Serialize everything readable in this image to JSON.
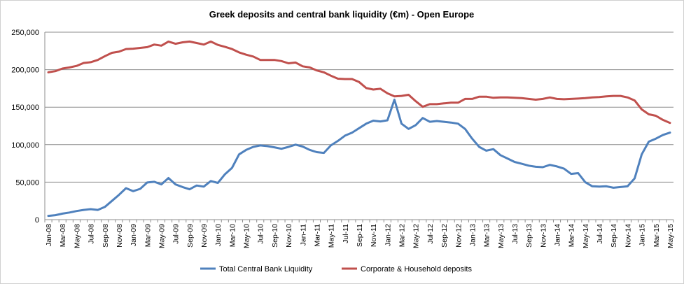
{
  "chart_data": {
    "type": "line",
    "title": "Greek deposits and central bank liquidity (€m) - Open Europe",
    "xlabel": "",
    "ylabel": "",
    "ylim": [
      0,
      250000
    ],
    "ytick_values": [
      0,
      50000,
      100000,
      150000,
      200000,
      250000
    ],
    "ytick_labels": [
      "0",
      "50,000",
      "100,000",
      "150,000",
      "200,000",
      "250,000"
    ],
    "x": [
      "Jan-08",
      "Feb-08",
      "Mar-08",
      "Apr-08",
      "May-08",
      "Jun-08",
      "Jul-08",
      "Aug-08",
      "Sep-08",
      "Oct-08",
      "Nov-08",
      "Dec-08",
      "Jan-09",
      "Feb-09",
      "Mar-09",
      "Apr-09",
      "May-09",
      "Jun-09",
      "Jul-09",
      "Aug-09",
      "Sep-09",
      "Oct-09",
      "Nov-09",
      "Dec-09",
      "Jan-10",
      "Feb-10",
      "Mar-10",
      "Apr-10",
      "May-10",
      "Jun-10",
      "Jul-10",
      "Aug-10",
      "Sep-10",
      "Oct-10",
      "Nov-10",
      "Dec-10",
      "Jan-11",
      "Feb-11",
      "Mar-11",
      "Apr-11",
      "May-11",
      "Jun-11",
      "Jul-11",
      "Aug-11",
      "Sep-11",
      "Oct-11",
      "Nov-11",
      "Dec-11",
      "Jan-12",
      "Feb-12",
      "Mar-12",
      "Apr-12",
      "May-12",
      "Jun-12",
      "Jul-12",
      "Aug-12",
      "Sep-12",
      "Oct-12",
      "Nov-12",
      "Dec-12",
      "Jan-13",
      "Feb-13",
      "Mar-13",
      "Apr-13",
      "May-13",
      "Jun-13",
      "Jul-13",
      "Aug-13",
      "Sep-13",
      "Oct-13",
      "Nov-13",
      "Dec-13",
      "Jan-14",
      "Feb-14",
      "Mar-14",
      "Apr-14",
      "May-14",
      "Jun-14",
      "Jul-14",
      "Aug-14",
      "Sep-14",
      "Oct-14",
      "Nov-14",
      "Dec-14",
      "Jan-15",
      "Feb-15",
      "Mar-15",
      "Apr-15",
      "May-15"
    ],
    "xtick_labels": [
      "Jan-08",
      "Mar-08",
      "May-08",
      "Jul-08",
      "Sep-08",
      "Nov-08",
      "Jan-09",
      "Mar-09",
      "May-09",
      "Jul-09",
      "Sep-09",
      "Nov-09",
      "Jan-10",
      "Mar-10",
      "May-10",
      "Jul-10",
      "Sep-10",
      "Nov-10",
      "Jan-11",
      "Mar-11",
      "May-11",
      "Jul-11",
      "Sep-11",
      "Nov-11",
      "Jan-12",
      "Mar-12",
      "May-12",
      "Jul-12",
      "Sep-12",
      "Nov-12",
      "Jan-13",
      "Mar-13",
      "May-13",
      "Jul-13",
      "Sep-13",
      "Nov-13",
      "Jan-14",
      "Mar-14",
      "May-14",
      "Jul-14",
      "Sep-14",
      "Nov-14",
      "Jan-15",
      "Mar-15",
      "May-15"
    ],
    "grid": true,
    "legend_position": "bottom",
    "series": [
      {
        "name": "Total Central Bank Liquidity",
        "color": "#4F81BD",
        "values": [
          5000,
          6000,
          8000,
          9500,
          11500,
          13000,
          14000,
          13000,
          17000,
          25000,
          33000,
          42000,
          38000,
          41000,
          49500,
          50500,
          47000,
          55500,
          47000,
          43500,
          40500,
          45500,
          44000,
          51500,
          49000,
          60500,
          69000,
          87000,
          93000,
          97000,
          99000,
          98000,
          96500,
          94500,
          97000,
          100000,
          97500,
          93000,
          90000,
          89000,
          99000,
          105000,
          112000,
          116000,
          122000,
          128000,
          132000,
          131000,
          132500,
          160000,
          128000,
          121000,
          126000,
          135500,
          130500,
          131500,
          130500,
          129500,
          128000,
          121000,
          108000,
          97000,
          92000,
          94000,
          86000,
          81500,
          77000,
          74500,
          72000,
          70500,
          70000,
          73000,
          71000,
          68000,
          61000,
          62000,
          50000,
          44500,
          44000,
          44500,
          42500,
          43500,
          44500,
          55000,
          87000,
          104000,
          108000,
          113000,
          116000
        ]
      },
      {
        "name": "Corporate & Household deposits",
        "color": "#C0504D",
        "values": [
          196500,
          198000,
          201500,
          203000,
          205000,
          209000,
          210000,
          213000,
          218000,
          222500,
          224000,
          227500,
          228000,
          229000,
          230000,
          233500,
          232000,
          237500,
          234500,
          236500,
          237500,
          235500,
          233500,
          237500,
          233000,
          230500,
          227500,
          223000,
          220000,
          217500,
          213000,
          213000,
          213000,
          211500,
          208500,
          209500,
          204500,
          203000,
          199000,
          196500,
          192000,
          188000,
          187500,
          187500,
          183500,
          175500,
          173500,
          174500,
          168500,
          164500,
          165000,
          166500,
          158000,
          150500,
          154000,
          154000,
          155000,
          156000,
          156000,
          161000,
          161000,
          164000,
          164000,
          162500,
          163000,
          163000,
          162500,
          162000,
          161000,
          160000,
          161000,
          163000,
          161000,
          160500,
          161000,
          161500,
          162000,
          163000,
          163500,
          164500,
          165000,
          165000,
          163000,
          159000,
          147000,
          140500,
          138500,
          133000,
          129000
        ]
      }
    ]
  }
}
